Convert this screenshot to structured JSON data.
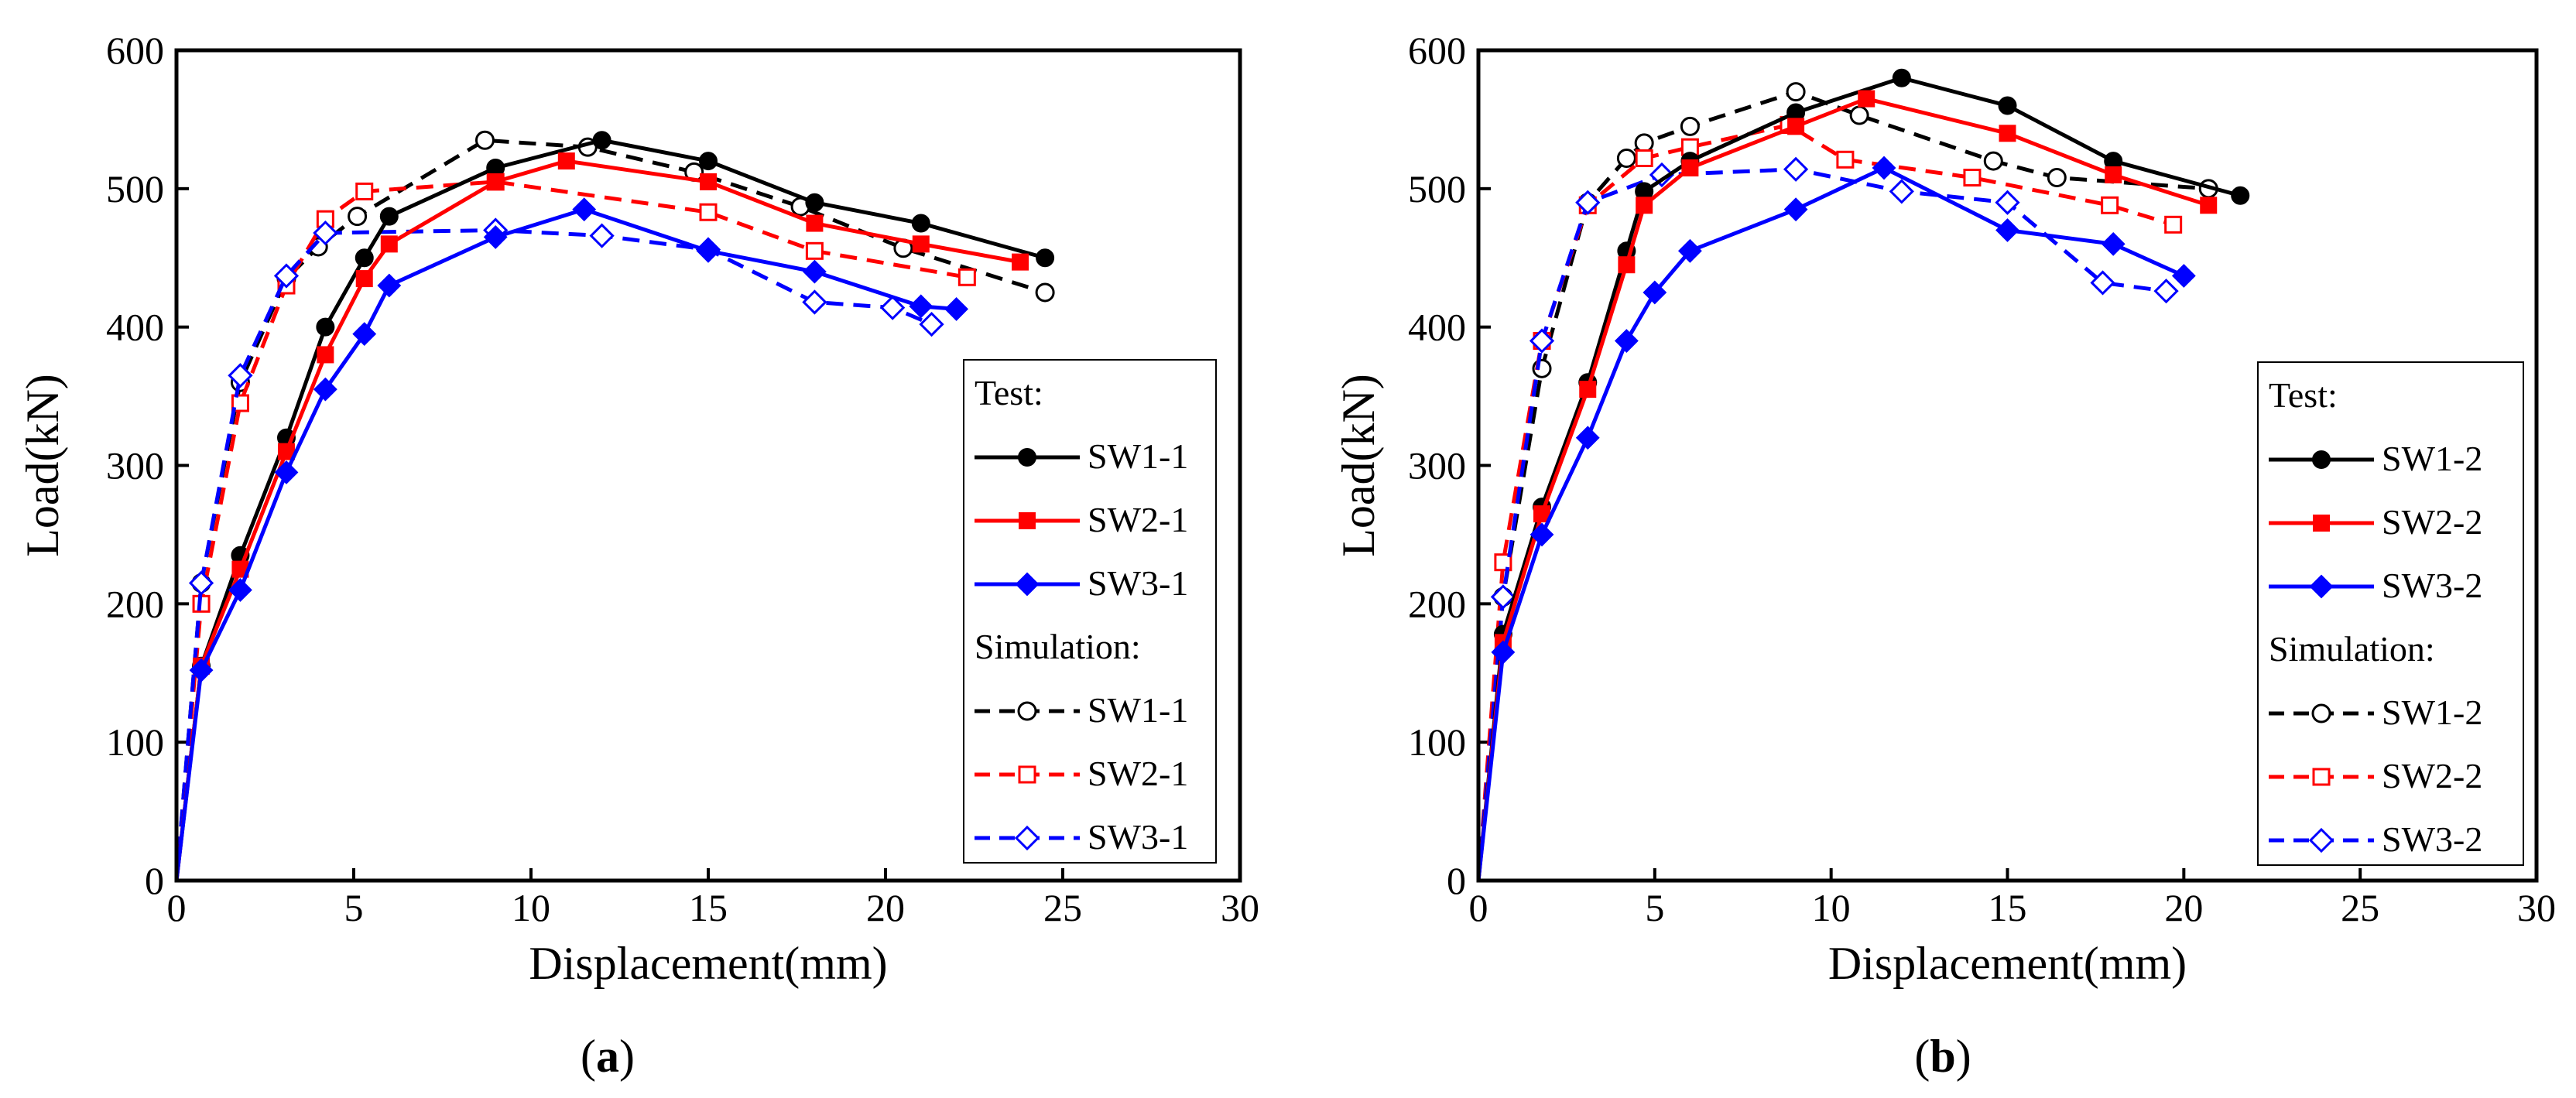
{
  "chart_data": [
    {
      "type": "line",
      "panel_label": "a",
      "xlabel": "Displacement(mm)",
      "ylabel": "Load(kN)",
      "xlim": [
        0,
        30
      ],
      "ylim": [
        0,
        600
      ],
      "xticks": [
        0,
        5,
        10,
        15,
        20,
        25,
        30
      ],
      "yticks": [
        0,
        100,
        200,
        300,
        400,
        500,
        600
      ],
      "legend_position": "bottom-right",
      "legend_test_title": "Test:",
      "legend_sim_title": "Simulation:",
      "series": [
        {
          "name": "SW1-1",
          "group": "Test",
          "color": "#000000",
          "dash": "solid",
          "marker": "circle",
          "filled": true,
          "x": [
            0,
            0.7,
            1.8,
            3.1,
            4.2,
            5.3,
            6.0,
            9.0,
            12.0,
            15.0,
            18.0,
            21.0,
            24.5
          ],
          "y": [
            0,
            155,
            235,
            320,
            400,
            450,
            480,
            515,
            535,
            520,
            490,
            475,
            450
          ]
        },
        {
          "name": "SW2-1",
          "group": "Test",
          "color": "#ff0000",
          "dash": "solid",
          "marker": "square",
          "filled": true,
          "x": [
            0,
            0.7,
            1.8,
            3.1,
            4.2,
            5.3,
            6.0,
            9.0,
            11.0,
            15.0,
            18.0,
            21.0,
            23.8
          ],
          "y": [
            0,
            155,
            225,
            310,
            380,
            435,
            460,
            505,
            520,
            505,
            475,
            460,
            447
          ]
        },
        {
          "name": "SW3-1",
          "group": "Test",
          "color": "#0000ff",
          "dash": "solid",
          "marker": "diamond",
          "filled": true,
          "x": [
            0,
            0.7,
            1.8,
            3.1,
            4.2,
            5.3,
            6.0,
            9.0,
            11.5,
            15.0,
            18.0,
            21.0,
            22.0
          ],
          "y": [
            0,
            152,
            210,
            295,
            355,
            395,
            430,
            465,
            485,
            455,
            440,
            415,
            413
          ]
        },
        {
          "name": "SW1-1",
          "group": "Simulation",
          "color": "#000000",
          "dash": "dashed",
          "marker": "circle",
          "filled": false,
          "x": [
            0,
            0.7,
            1.8,
            3.1,
            4.0,
            5.1,
            8.7,
            11.6,
            14.6,
            17.6,
            20.5,
            24.5
          ],
          "y": [
            0,
            215,
            360,
            435,
            458,
            480,
            535,
            530,
            512,
            487,
            457,
            425
          ]
        },
        {
          "name": "SW2-1",
          "group": "Simulation",
          "color": "#ff0000",
          "dash": "dashed",
          "marker": "square",
          "filled": false,
          "x": [
            0,
            0.7,
            1.8,
            3.1,
            4.2,
            5.3,
            9.0,
            15.0,
            18.0,
            22.3
          ],
          "y": [
            0,
            200,
            345,
            430,
            478,
            498,
            505,
            483,
            455,
            436
          ]
        },
        {
          "name": "SW3-1",
          "group": "Simulation",
          "color": "#0000ff",
          "dash": "dashed",
          "marker": "diamond",
          "filled": false,
          "x": [
            0,
            0.7,
            1.8,
            3.1,
            4.2,
            9.0,
            12.0,
            15.0,
            18.0,
            20.2,
            21.3
          ],
          "y": [
            0,
            215,
            365,
            437,
            468,
            470,
            466,
            456,
            418,
            414,
            402
          ]
        }
      ]
    },
    {
      "type": "line",
      "panel_label": "b",
      "xlabel": "Displacement(mm)",
      "ylabel": "Load(kN)",
      "xlim": [
        0,
        30
      ],
      "ylim": [
        0,
        600
      ],
      "xticks": [
        0,
        5,
        10,
        15,
        20,
        25,
        30
      ],
      "yticks": [
        0,
        100,
        200,
        300,
        400,
        500,
        600
      ],
      "legend_position": "bottom-right",
      "legend_test_title": "Test:",
      "legend_sim_title": "Simulation:",
      "series": [
        {
          "name": "SW1-2",
          "group": "Test",
          "color": "#000000",
          "dash": "solid",
          "marker": "circle",
          "filled": true,
          "x": [
            0,
            0.7,
            1.8,
            3.1,
            4.2,
            4.7,
            6.0,
            9.0,
            12.0,
            15.0,
            18.0,
            21.6
          ],
          "y": [
            0,
            178,
            270,
            360,
            455,
            498,
            520,
            555,
            580,
            560,
            520,
            495
          ]
        },
        {
          "name": "SW2-2",
          "group": "Test",
          "color": "#ff0000",
          "dash": "solid",
          "marker": "square",
          "filled": true,
          "x": [
            0,
            0.7,
            1.8,
            3.1,
            4.2,
            4.7,
            6.0,
            9.0,
            11.0,
            15.0,
            18.0,
            20.7
          ],
          "y": [
            0,
            172,
            265,
            355,
            445,
            488,
            515,
            545,
            565,
            540,
            510,
            488
          ]
        },
        {
          "name": "SW3-2",
          "group": "Test",
          "color": "#0000ff",
          "dash": "solid",
          "marker": "diamond",
          "filled": true,
          "x": [
            0,
            0.7,
            1.8,
            3.1,
            4.2,
            5.0,
            6.0,
            9.0,
            11.5,
            15.0,
            18.0,
            20.0
          ],
          "y": [
            0,
            165,
            250,
            320,
            390,
            425,
            455,
            485,
            515,
            470,
            460,
            437
          ]
        },
        {
          "name": "SW1-2",
          "group": "Simulation",
          "color": "#000000",
          "dash": "dashed",
          "marker": "circle",
          "filled": false,
          "x": [
            0,
            0.7,
            1.8,
            3.1,
            4.2,
            4.7,
            6.0,
            9.0,
            10.8,
            14.6,
            16.4,
            20.7
          ],
          "y": [
            0,
            205,
            370,
            490,
            522,
            533,
            545,
            570,
            553,
            520,
            508,
            500
          ]
        },
        {
          "name": "SW2-2",
          "group": "Simulation",
          "color": "#ff0000",
          "dash": "dashed",
          "marker": "square",
          "filled": false,
          "x": [
            0,
            0.7,
            1.8,
            3.1,
            4.7,
            6.0,
            8.8,
            10.4,
            14.0,
            17.9,
            19.7
          ],
          "y": [
            0,
            230,
            390,
            488,
            522,
            530,
            546,
            521,
            508,
            488,
            474
          ]
        },
        {
          "name": "SW3-2",
          "group": "Simulation",
          "color": "#0000ff",
          "dash": "dashed",
          "marker": "diamond",
          "filled": false,
          "x": [
            0,
            0.7,
            1.8,
            3.1,
            5.2,
            9.0,
            12.0,
            15.0,
            17.7,
            19.5
          ],
          "y": [
            0,
            205,
            390,
            490,
            510,
            514,
            498,
            490,
            432,
            426
          ]
        }
      ]
    }
  ]
}
